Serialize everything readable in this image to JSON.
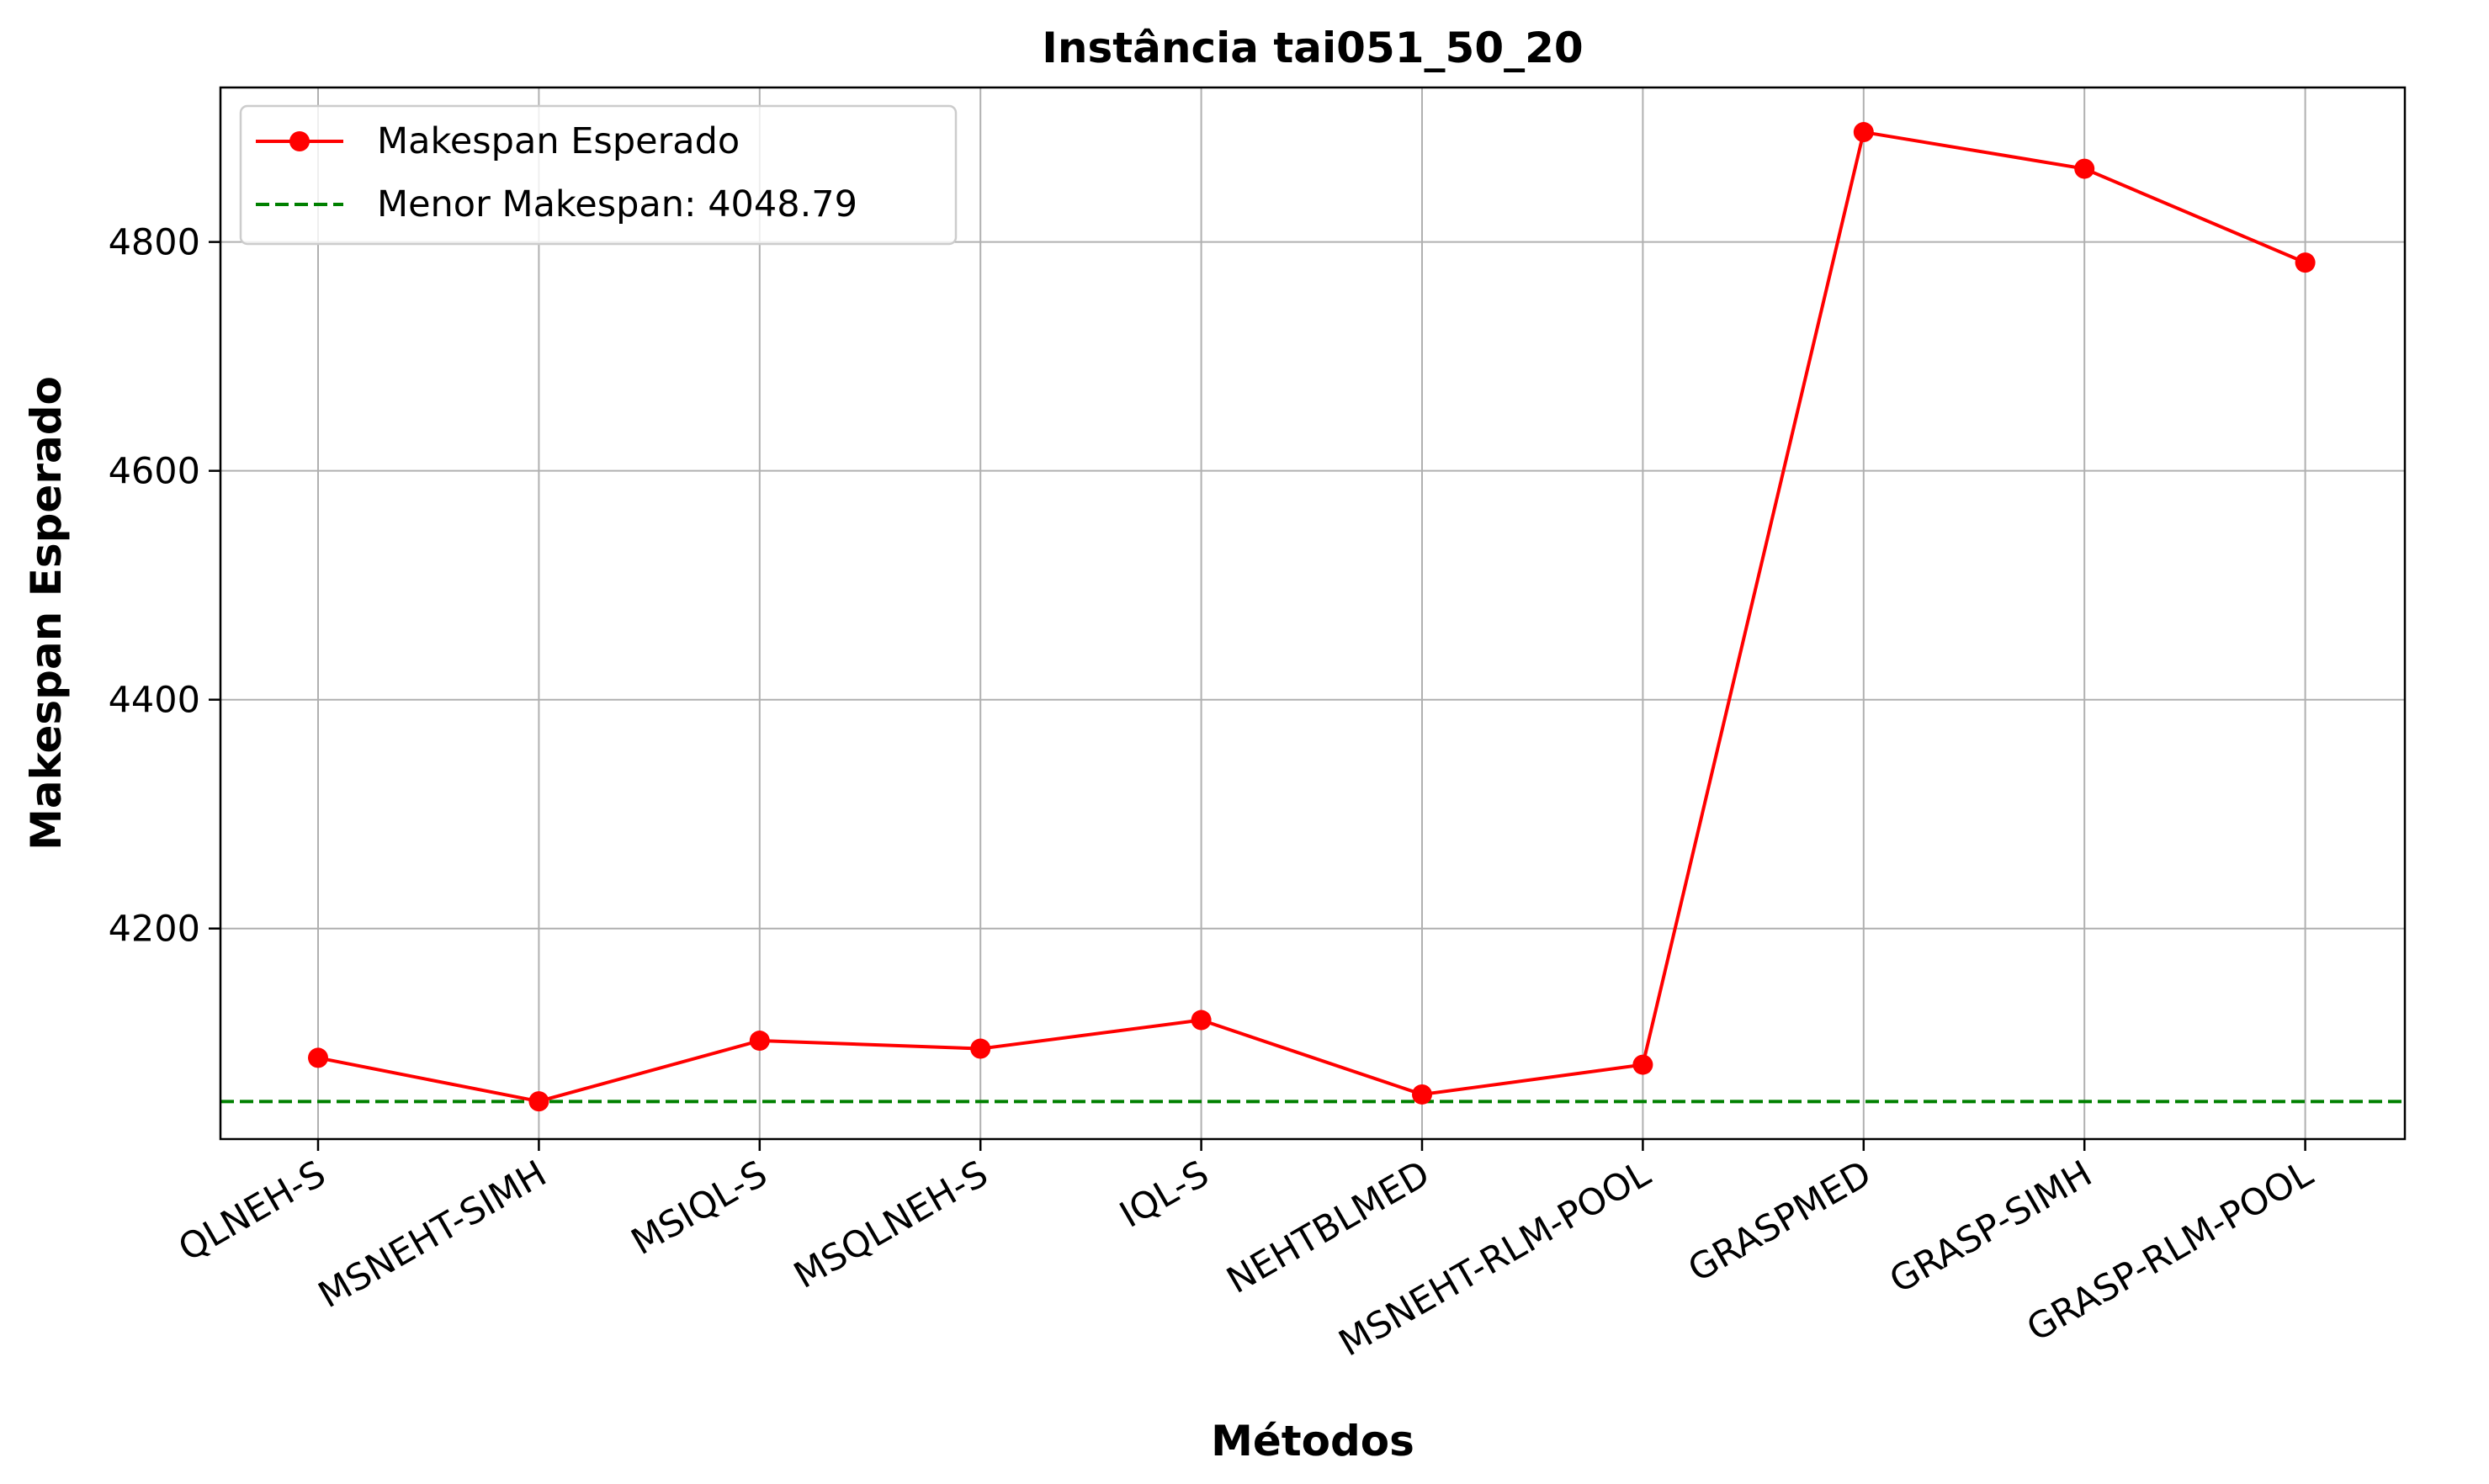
{
  "chart_data": {
    "type": "line",
    "title": "Instância tai051_50_20",
    "xlabel": "Métodos",
    "ylabel": "Makespan Esperado",
    "categories": [
      "QLNEH-S",
      "MSNEHT-SIMH",
      "MSIQL-S",
      "MSQLNEH-S",
      "IQL-S",
      "NEHTBLMED",
      "MSNEHT-RLM-POOL",
      "GRASPMED",
      "GRASP-SIMH",
      "GRASP-RLM-POOL"
    ],
    "series": [
      {
        "name": "Makespan Esperado",
        "values": [
          4087,
          4049,
          4102,
          4095,
          4120,
          4055,
          4081,
          4896,
          4864,
          4782
        ],
        "color": "#ff0000",
        "marker": "circle"
      }
    ],
    "reference_line": {
      "label": "Menor Makespan: 4048.79",
      "value": 4048.79,
      "color": "#008000",
      "style": "dashed"
    },
    "yticks": [
      4200,
      4400,
      4600,
      4800
    ],
    "ylim": [
      4016,
      4935
    ],
    "grid": true,
    "legend_position": "upper-left",
    "colors": {
      "series": "#ff0000",
      "reference": "#008000",
      "grid": "#b0b0b0",
      "axes": "#000000"
    }
  }
}
